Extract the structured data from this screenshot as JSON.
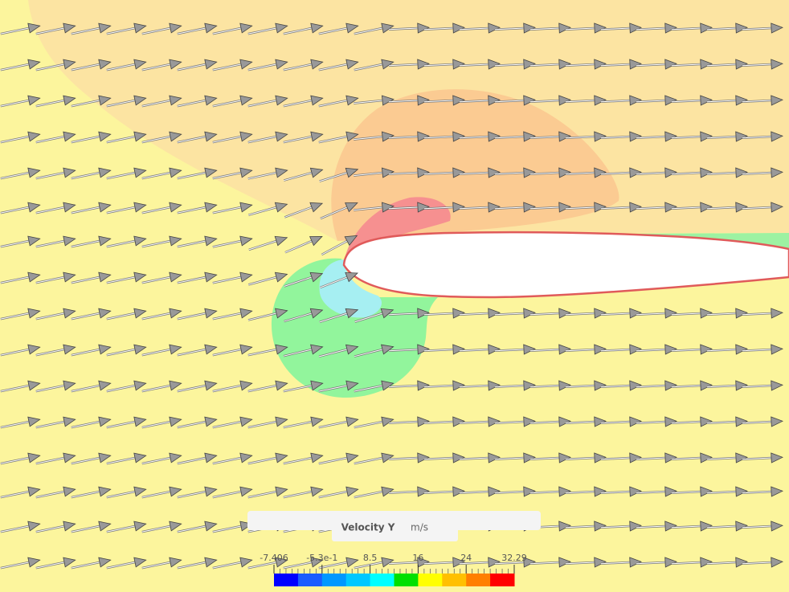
{
  "legend": {
    "title": "Velocity Y",
    "unit": "m/s",
    "ticks": [
      "-7.406",
      "-5.3e-1",
      "8.5",
      "16",
      "24",
      "32.29"
    ],
    "colors": [
      "#0000ff",
      "#1a5cff",
      "#0098ff",
      "#00c8ff",
      "#00ffff",
      "#00e000",
      "#ffff00",
      "#ffc000",
      "#ff7f00",
      "#ff0000"
    ]
  }
}
